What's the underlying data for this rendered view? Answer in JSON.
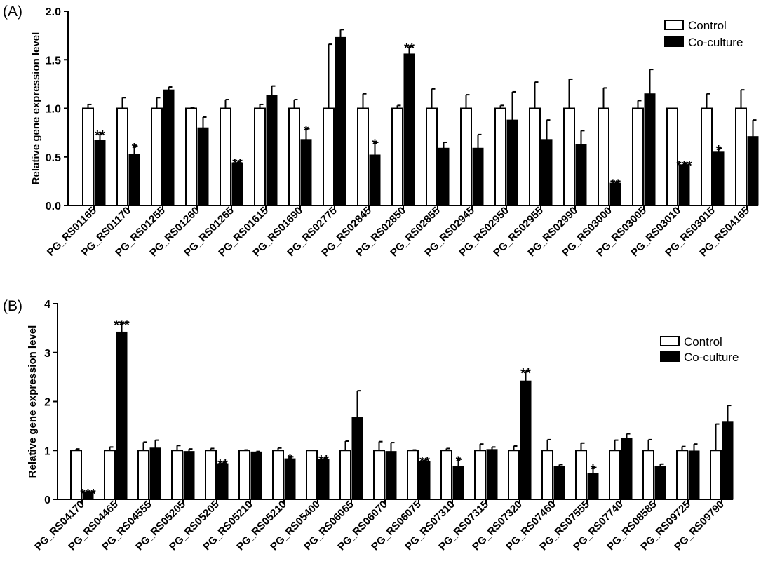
{
  "chart_data": [
    {
      "type": "bar",
      "panel_label": "(A)",
      "ylabel": "Relative gene expression level",
      "ylim": [
        0,
        2.0
      ],
      "yticks": [
        0.0,
        0.5,
        1.0,
        1.5,
        2.0
      ],
      "ytick_labels": [
        "0.0",
        "0.5",
        "1.0",
        "1.5",
        "2.0"
      ],
      "categories": [
        "PG_RS01165",
        "PG_RS01170",
        "PG_RS01255",
        "PG_RS01260",
        "PG_RS01265",
        "PG_RS01615",
        "PG_RS01690",
        "PG_RS02775",
        "PG_RS02845",
        "PG_RS02850",
        "PG_RS02855",
        "PG_RS02945",
        "PG_RS02950",
        "PG_RS02955",
        "PG_RS02990",
        "PG_RS03000",
        "PG_RS03005",
        "PG_RS03010",
        "PG_RS03015",
        "PG_RS04165"
      ],
      "legend_position": "top-right",
      "series": [
        {
          "name": "Control",
          "color": "#ffffff",
          "values": [
            1.0,
            1.0,
            1.0,
            1.0,
            1.0,
            1.0,
            1.0,
            1.0,
            1.0,
            1.0,
            1.0,
            1.0,
            1.0,
            1.0,
            1.0,
            1.0,
            1.0,
            1.0,
            1.0,
            1.0
          ],
          "errors": [
            0.04,
            0.11,
            0.11,
            0.01,
            0.09,
            0.04,
            0.09,
            0.66,
            0.15,
            0.03,
            0.2,
            0.14,
            0.03,
            0.27,
            0.3,
            0.21,
            0.08,
            0.0,
            0.15,
            0.19
          ]
        },
        {
          "name": "Co-culture",
          "color": "#000000",
          "values": [
            0.67,
            0.53,
            1.19,
            0.8,
            0.44,
            1.13,
            0.68,
            1.73,
            0.52,
            1.56,
            0.59,
            0.59,
            0.88,
            0.68,
            0.63,
            0.23,
            1.15,
            0.42,
            0.55,
            0.71
          ],
          "errors": [
            0.07,
            0.08,
            0.03,
            0.11,
            0.01,
            0.1,
            0.11,
            0.08,
            0.13,
            0.08,
            0.06,
            0.14,
            0.29,
            0.2,
            0.14,
            0.01,
            0.25,
            0.01,
            0.04,
            0.17
          ]
        }
      ],
      "significance": [
        "**",
        "*",
        "",
        "",
        "**",
        "",
        "*",
        "",
        "*",
        "**",
        "",
        "",
        "",
        "",
        "",
        "**",
        "",
        "***",
        "*",
        ""
      ]
    },
    {
      "type": "bar",
      "panel_label": "(B)",
      "ylabel": "Relative gene expression level",
      "ylim": [
        0,
        4
      ],
      "yticks": [
        0,
        1,
        2,
        3,
        4
      ],
      "ytick_labels": [
        "0",
        "1",
        "2",
        "3",
        "4"
      ],
      "categories": [
        "PG_RS04170",
        "PG_RS04465",
        "PG_RS04555",
        "PG_RS05205",
        "PG_RS05205",
        "PG_RS05210",
        "PG_RS05210",
        "PG_RS05400",
        "PG_RS06065",
        "PG_RS06070",
        "PG_RS06075",
        "PG_RS07310",
        "PG_RS07315",
        "PG_RS07320",
        "PG_RS07460",
        "PG_RS07555",
        "PG_RS07740",
        "PG_RS08585",
        "PG_RS09725",
        "PG_RS09790"
      ],
      "legend_position": "top-right",
      "series": [
        {
          "name": "Control",
          "color": "#ffffff",
          "values": [
            1.0,
            1.0,
            1.0,
            1.0,
            1.0,
            1.0,
            1.0,
            1.0,
            1.0,
            1.0,
            1.0,
            1.0,
            1.0,
            1.0,
            1.0,
            1.0,
            1.0,
            1.0,
            1.0,
            1.0
          ],
          "errors": [
            0.03,
            0.07,
            0.17,
            0.1,
            0.04,
            0.01,
            0.05,
            0.0,
            0.19,
            0.18,
            0.01,
            0.04,
            0.13,
            0.09,
            0.22,
            0.15,
            0.21,
            0.22,
            0.08,
            0.54
          ]
        },
        {
          "name": "Co-culture",
          "color": "#000000",
          "values": [
            0.14,
            3.42,
            1.05,
            0.98,
            0.73,
            0.97,
            0.83,
            0.82,
            1.67,
            0.98,
            0.77,
            0.68,
            1.02,
            2.42,
            0.67,
            0.53,
            1.25,
            0.68,
            0.99,
            1.58
          ],
          "errors": [
            0.01,
            0.18,
            0.16,
            0.05,
            0.02,
            0.01,
            0.04,
            0.02,
            0.55,
            0.18,
            0.04,
            0.14,
            0.05,
            0.2,
            0.04,
            0.12,
            0.09,
            0.04,
            0.14,
            0.34
          ]
        }
      ],
      "significance": [
        "***",
        "***",
        "",
        "",
        "**",
        "",
        "*",
        "**",
        "",
        "",
        "**",
        "*",
        "",
        "**",
        "",
        "*",
        "",
        "",
        "",
        ""
      ]
    }
  ]
}
